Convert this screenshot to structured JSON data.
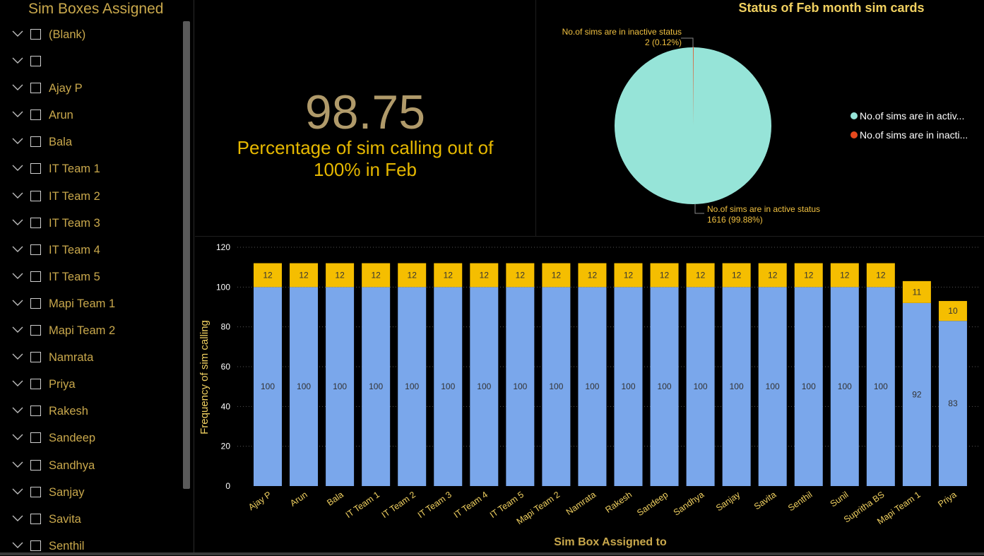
{
  "slicer": {
    "title": "Sim Boxes Assigned",
    "items": [
      "(Blank)",
      "",
      "Ajay P",
      "Arun",
      "Bala",
      "IT Team 1",
      "IT Team 2",
      "IT Team 3",
      "IT Team 4",
      "IT Team 5",
      "Mapi Team 1",
      "Mapi Team 2",
      "Namrata",
      "Priya",
      "Rakesh",
      "Sandeep",
      "Sandhya",
      "Sanjay",
      "Savita",
      "Senthil"
    ]
  },
  "kpi": {
    "value": "98.75",
    "caption_line1": "Percentage of sim calling out of",
    "caption_line2": "100% in Feb"
  },
  "colors": {
    "accent_gold": "#e6b800",
    "bar_base": "#7aa7eb",
    "bar_top": "#f5be00",
    "pie_active": "#96e4d8",
    "pie_inactive": "#e8491d"
  },
  "chart_data": [
    {
      "type": "pie",
      "title": "Status of Feb month sim cards",
      "slices": [
        {
          "name": "No.of sims are in active status",
          "value": 1616,
          "label": "1616 (99.88%)",
          "legend": "No.of sims are in activ...",
          "color": "#96e4d8"
        },
        {
          "name": "No.of sims are in inactive status",
          "value": 2,
          "label": "2 (0.12%)",
          "legend": "No.of sims are in inacti...",
          "color": "#e8491d"
        }
      ],
      "legend_position": "right"
    },
    {
      "type": "bar",
      "stacked": true,
      "title": "",
      "xlabel": "Sim Box Assigned to",
      "ylabel": "Frequency of sim calling",
      "ylim": [
        0,
        120
      ],
      "yticks": [
        0,
        20,
        40,
        60,
        80,
        100,
        120
      ],
      "grid": true,
      "categories": [
        "Ajay P",
        "Arun",
        "Bala",
        "IT Team 1",
        "IT Team 2",
        "IT Team 3",
        "IT Team 4",
        "IT Team 5",
        "Mapi Team 2",
        "Namrata",
        "Rakesh",
        "Sandeep",
        "Sandhya",
        "Sanjay",
        "Savita",
        "Senthil",
        "Sunil",
        "Supritha BS",
        "Mapi Team 1",
        "Priya"
      ],
      "series": [
        {
          "values": [
            100,
            100,
            100,
            100,
            100,
            100,
            100,
            100,
            100,
            100,
            100,
            100,
            100,
            100,
            100,
            100,
            100,
            100,
            92,
            83
          ],
          "color": "#7aa7eb"
        },
        {
          "values": [
            12,
            12,
            12,
            12,
            12,
            12,
            12,
            12,
            12,
            12,
            12,
            12,
            12,
            12,
            12,
            12,
            12,
            12,
            11,
            10
          ],
          "color": "#f5be00"
        }
      ]
    }
  ]
}
